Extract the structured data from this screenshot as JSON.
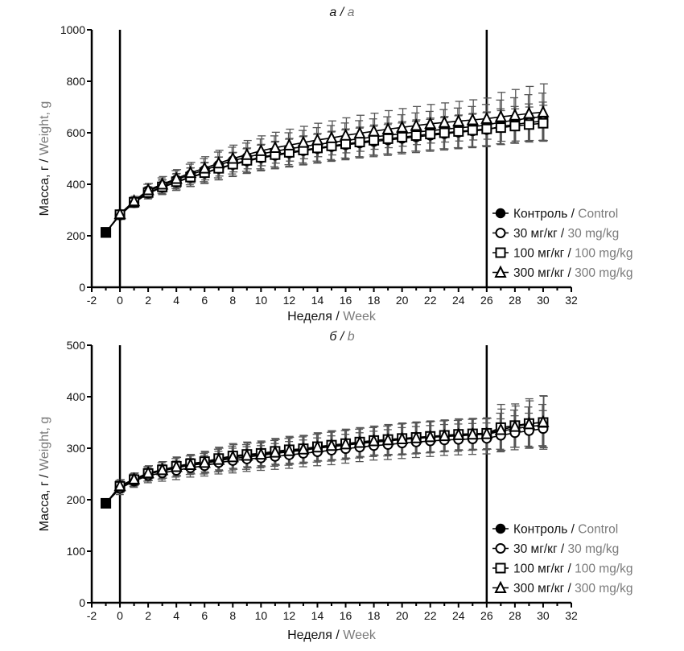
{
  "chart_data": [
    {
      "type": "line",
      "panel": "a",
      "title_ru": "а",
      "title_en": "a",
      "xlabel_ru": "Неделя",
      "xlabel_en": "Week",
      "ylabel_ru": "Масса, г",
      "ylabel_en": "Weight, g",
      "xlim": [
        -2,
        32
      ],
      "ylim": [
        0,
        1000
      ],
      "xticks": [
        -2,
        0,
        2,
        4,
        6,
        8,
        10,
        12,
        14,
        16,
        18,
        20,
        22,
        24,
        26,
        28,
        30,
        32
      ],
      "yticks": [
        0,
        200,
        400,
        600,
        800,
        1000
      ],
      "vlines": [
        0,
        26
      ],
      "legend_position": "lower-right",
      "x": [
        -1,
        0,
        1,
        2,
        3,
        4,
        5,
        6,
        7,
        8,
        9,
        10,
        11,
        12,
        13,
        14,
        15,
        16,
        17,
        18,
        19,
        20,
        21,
        22,
        23,
        24,
        25,
        26,
        27,
        28,
        29,
        30
      ],
      "series": [
        {
          "name_ru": "Контроль",
          "name_en": "Control",
          "marker": "filled-circle",
          "values": [
            213,
            283,
            332,
            375,
            395,
            418,
            438,
            455,
            475,
            492,
            505,
            518,
            528,
            538,
            546,
            555,
            562,
            570,
            577,
            584,
            590,
            597,
            603,
            608,
            614,
            619,
            624,
            630,
            642,
            648,
            658,
            662
          ],
          "errors": [
            8,
            15,
            18,
            25,
            30,
            35,
            40,
            45,
            50,
            52,
            55,
            58,
            60,
            62,
            63,
            65,
            66,
            68,
            70,
            70,
            72,
            73,
            74,
            75,
            76,
            77,
            78,
            80,
            85,
            88,
            90,
            92
          ]
        },
        {
          "name_ru": "30 мг/кг",
          "name_en": "30 mg/kg",
          "marker": "open-circle",
          "values": [
            213,
            280,
            328,
            365,
            388,
            408,
            427,
            443,
            461,
            476,
            490,
            502,
            512,
            521,
            530,
            538,
            546,
            553,
            560,
            566,
            572,
            578,
            584,
            590,
            596,
            602,
            607,
            612,
            625,
            632,
            640,
            645
          ],
          "errors": [
            8,
            15,
            18,
            22,
            28,
            32,
            36,
            40,
            44,
            46,
            48,
            50,
            52,
            54,
            55,
            56,
            57,
            58,
            58,
            59,
            60,
            60,
            61,
            62,
            63,
            64,
            65,
            66,
            68,
            70,
            72,
            74
          ]
        },
        {
          "name_ru": "100 мг/кг",
          "name_en": "100 mg/kg",
          "marker": "open-square",
          "values": [
            213,
            282,
            330,
            368,
            390,
            410,
            428,
            445,
            462,
            478,
            493,
            505,
            515,
            524,
            533,
            541,
            549,
            557,
            564,
            571,
            577,
            583,
            589,
            595,
            600,
            605,
            610,
            615,
            620,
            626,
            632,
            637
          ],
          "errors": [
            8,
            15,
            18,
            22,
            28,
            32,
            36,
            40,
            44,
            46,
            48,
            50,
            52,
            54,
            55,
            56,
            57,
            58,
            58,
            59,
            60,
            60,
            61,
            62,
            63,
            64,
            65,
            66,
            66,
            67,
            68,
            70
          ]
        },
        {
          "name_ru": "300 мг/кг",
          "name_en": "300 mg/kg",
          "marker": "open-triangle",
          "values": [
            213,
            285,
            335,
            378,
            400,
            422,
            445,
            462,
            482,
            500,
            515,
            530,
            542,
            552,
            562,
            572,
            580,
            590,
            598,
            606,
            614,
            621,
            628,
            635,
            640,
            645,
            650,
            655,
            662,
            668,
            675,
            680
          ],
          "errors": [
            8,
            15,
            18,
            25,
            30,
            35,
            40,
            45,
            50,
            52,
            55,
            58,
            60,
            62,
            63,
            65,
            66,
            68,
            70,
            70,
            72,
            73,
            74,
            75,
            76,
            77,
            78,
            80,
            95,
            100,
            105,
            110
          ]
        }
      ]
    },
    {
      "type": "line",
      "panel": "b",
      "title_ru": "б",
      "title_en": "b",
      "xlabel_ru": "Неделя",
      "xlabel_en": "Week",
      "ylabel_ru": "Масса, г",
      "ylabel_en": "Weight, g",
      "xlim": [
        -2,
        32
      ],
      "ylim": [
        0,
        500
      ],
      "xticks": [
        -2,
        0,
        2,
        4,
        6,
        8,
        10,
        12,
        14,
        16,
        18,
        20,
        22,
        24,
        26,
        28,
        30,
        32
      ],
      "yticks": [
        0,
        100,
        200,
        300,
        400,
        500
      ],
      "vlines": [
        0,
        26
      ],
      "legend_position": "lower-right",
      "x": [
        -1,
        0,
        1,
        2,
        3,
        4,
        5,
        6,
        7,
        8,
        9,
        10,
        11,
        12,
        13,
        14,
        15,
        16,
        17,
        18,
        19,
        20,
        21,
        22,
        23,
        24,
        25,
        26,
        27,
        28,
        29,
        30
      ],
      "series": [
        {
          "name_ru": "Контроль",
          "name_en": "Control",
          "marker": "filled-circle",
          "values": [
            193,
            225,
            238,
            250,
            256,
            262,
            267,
            270,
            276,
            280,
            283,
            286,
            290,
            293,
            296,
            300,
            303,
            306,
            309,
            312,
            314,
            317,
            319,
            321,
            323,
            324,
            326,
            327,
            333,
            338,
            342,
            345
          ],
          "errors": [
            4,
            12,
            12,
            14,
            16,
            18,
            18,
            20,
            22,
            24,
            24,
            24,
            25,
            26,
            26,
            27,
            28,
            28,
            28,
            28,
            29,
            30,
            30,
            30,
            30,
            30,
            30,
            30,
            35,
            36,
            38,
            40
          ]
        },
        {
          "name_ru": "30 мг/кг",
          "name_en": "30 mg/kg",
          "marker": "open-circle",
          "values": [
            193,
            222,
            236,
            247,
            252,
            257,
            262,
            266,
            272,
            276,
            279,
            281,
            284,
            287,
            290,
            293,
            296,
            299,
            302,
            305,
            307,
            310,
            312,
            314,
            316,
            317,
            318,
            319,
            325,
            330,
            334,
            338
          ],
          "errors": [
            4,
            12,
            12,
            14,
            16,
            18,
            18,
            20,
            22,
            24,
            24,
            24,
            25,
            26,
            26,
            27,
            28,
            28,
            28,
            28,
            29,
            30,
            30,
            30,
            30,
            30,
            30,
            30,
            32,
            33,
            34,
            35
          ]
        },
        {
          "name_ru": "100 мг/кг",
          "name_en": "100 mg/kg",
          "marker": "open-square",
          "values": [
            193,
            226,
            239,
            251,
            258,
            265,
            270,
            274,
            280,
            285,
            288,
            290,
            294,
            297,
            299,
            303,
            306,
            309,
            312,
            315,
            317,
            319,
            321,
            323,
            325,
            327,
            328,
            329,
            340,
            344,
            348,
            350
          ],
          "errors": [
            4,
            12,
            12,
            14,
            16,
            18,
            18,
            20,
            22,
            24,
            24,
            24,
            25,
            26,
            26,
            27,
            28,
            28,
            28,
            28,
            29,
            30,
            30,
            30,
            30,
            30,
            30,
            30,
            45,
            42,
            48,
            52
          ]
        },
        {
          "name_ru": "300 мг/кг",
          "name_en": "300 mg/kg",
          "marker": "open-triangle",
          "values": [
            193,
            227,
            240,
            252,
            258,
            264,
            268,
            272,
            278,
            283,
            286,
            288,
            292,
            295,
            298,
            302,
            305,
            308,
            311,
            314,
            316,
            318,
            320,
            322,
            324,
            326,
            327,
            328,
            336,
            342,
            347,
            351
          ],
          "errors": [
            4,
            12,
            12,
            14,
            16,
            18,
            18,
            20,
            22,
            24,
            24,
            24,
            25,
            26,
            26,
            27,
            28,
            28,
            28,
            28,
            29,
            30,
            30,
            30,
            30,
            30,
            30,
            30,
            40,
            40,
            45,
            50
          ]
        }
      ]
    }
  ]
}
